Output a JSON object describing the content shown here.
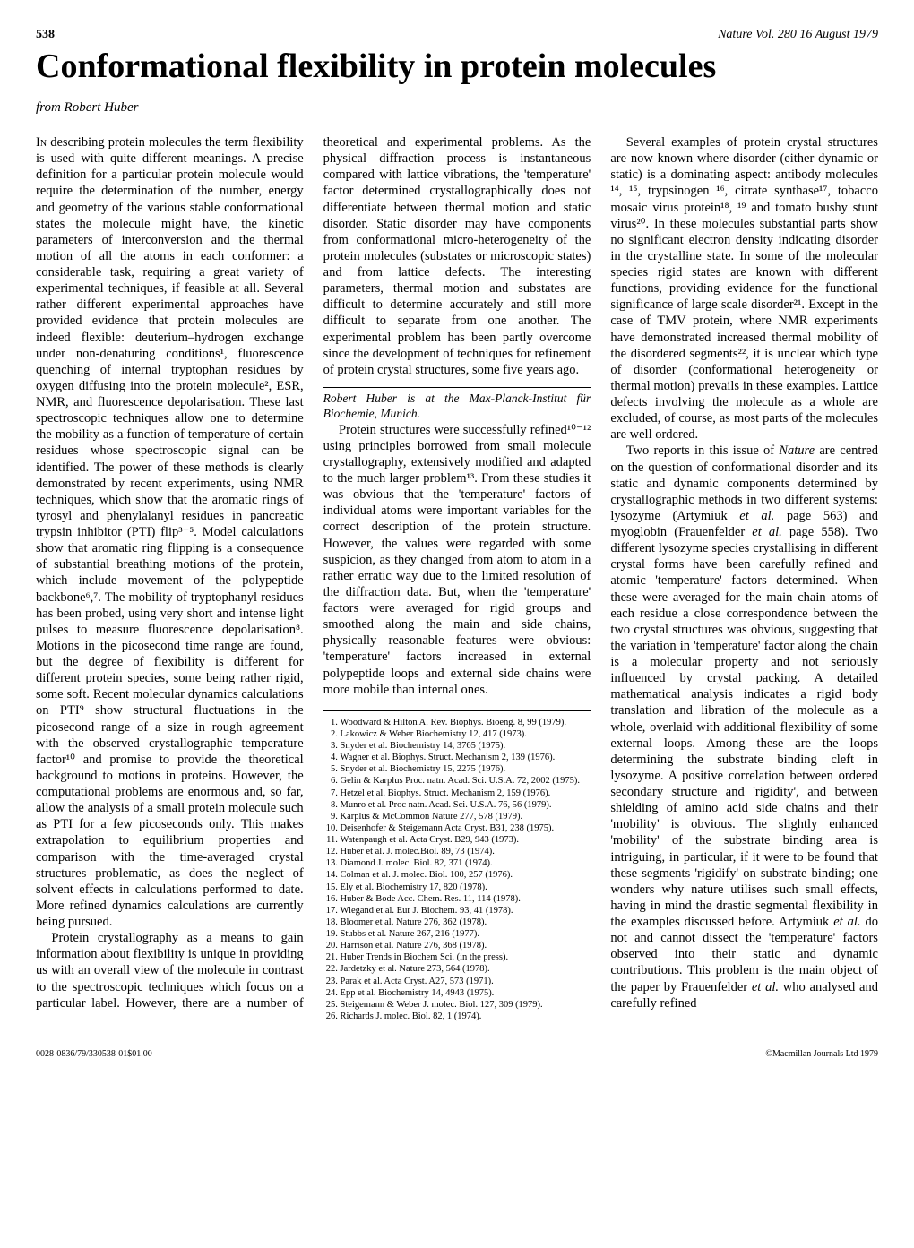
{
  "header": {
    "page_number": "538",
    "journal_line": "Nature Vol. 280   16 August 1979"
  },
  "title": "Conformational flexibility in protein molecules",
  "byline": "from Robert Huber",
  "paragraphs": {
    "p1_lead": "In",
    "p1": " describing protein molecules the term flexibility is used with quite different meanings. A precise definition for a particular protein molecule would require the determination of the number, energy and geometry of the various stable conformational states the molecule might have, the kinetic parameters of interconversion and the thermal motion of all the atoms in each conformer: a considerable task, requiring a great variety of experimental techniques, if feasible at all. Several rather different experimental approaches have provided evidence that protein molecules are indeed flexible: deuterium–hydrogen exchange under non-denaturing conditions¹, fluorescence quenching of internal tryptophan residues by oxygen diffusing into the protein molecule², ESR, NMR, and fluorescence depolarisation. These last spectroscopic techniques allow one to determine the mobility as a function of temperature of certain residues whose spectroscopic signal can be identified. The power of these methods is clearly demonstrated by recent experiments, using NMR techniques, which show that the aromatic rings of tyrosyl and phenylalanyl residues in pancreatic trypsin inhibitor (PTI) flip³⁻⁵. Model calculations show that aromatic ring flipping is a consequence of substantial breathing motions of the protein, which include movement of the polypeptide backbone⁶,⁷. The mobility of tryptophanyl residues has been probed, using very short and intense light pulses to measure fluorescence depolarisation⁸. Motions in the picosecond time range are found, but the degree of flexibility is different for different protein species, some being rather rigid, some soft. Recent molecular dynamics calculations on PTI⁹ show structural fluctuations in the picosecond range of a size in rough agreement with the observed crystallographic temperature factor¹⁰ and promise to provide the theoretical background to motions in proteins. However, the computational problems are enormous and, so far, allow the analysis of a small protein molecule such as PTI for a few picoseconds only. This makes extrapolation to equilibrium properties and comparison with the time-averaged crystal structures problematic, as does the neglect of solvent effects in calculations performed to date. More refined dynamics calculations are currently being pursued.",
    "p2": "Protein crystallography as a means to gain information about flexibility is unique in providing us with an overall view of the molecule in contrast to the spectroscopic techniques which focus on a particular label. However, there are a number of theoretical and experimental problems. As the physical diffraction process is instantaneous compared with lattice vibrations, the 'temperature' factor determined crystallographically does not differentiate between thermal motion and static disorder. Static disorder may have components from conformational micro-heterogeneity of the protein molecules (substates or microscopic states) and from lattice defects. The interesting parameters, thermal motion and substates are difficult to determine accurately and still more difficult to separate from one another. The experimental problem has been partly overcome since the development of techniques for refinement of protein crystal structures, some five years ago.",
    "p3": "Protein structures were successfully refined¹⁰⁻¹² using principles borrowed from small molecule crystallography, extensively modified and adapted to the much larger problem¹³. From these studies it was obvious that the 'temperature' factors of individual atoms were important variables for the correct description of the protein structure. However, the values were regarded with some suspicion, as they changed from atom to atom in a rather erratic way due to the limited resolution of the diffraction data. But, when the 'temperature' factors were averaged for rigid groups and smoothed along the main and side chains, physically reasonable features were obvious: 'temperature' factors increased in external polypeptide loops and external side chains were more mobile than internal ones.",
    "p4": "Several examples of protein crystal structures are now known where disorder (either dynamic or static) is a dominating aspect: antibody molecules ¹⁴, ¹⁵, trypsinogen ¹⁶, citrate synthase¹⁷, tobacco mosaic virus protein¹⁸, ¹⁹ and tomato bushy stunt virus²⁰. In these molecules substantial parts show no significant electron density indicating disorder in the crystalline state. In some of the molecular species rigid states are known with different functions, providing evidence for the functional significance of large scale disorder²¹. Except in the case of TMV protein, where NMR experiments have demonstrated increased thermal mobility of the disordered segments²², it is unclear which type of disorder (conformational heterogeneity or thermal motion) prevails in these examples. Lattice defects involving the molecule as a whole are excluded, of course, as most parts of the molecules are well ordered.",
    "p5a": "Two reports in this issue of ",
    "p5_nature": "Nature",
    "p5b": " are centred on the question of conformational disorder and its static and dynamic components determined by crystallographic methods in two different systems: lysozyme (Artymiuk ",
    "p5_etal1": "et al.",
    "p5c": " page 563) and myoglobin (Frauenfelder ",
    "p5_etal2": "et al.",
    "p5d": " page 558). Two different lysozyme species crystallising in different crystal forms have been carefully refined and atomic 'temperature' factors determined. When these were averaged for the main chain atoms of each residue a close correspondence between the two crystal structures was obvious, suggesting that the variation in 'temperature' factor along the chain is a molecular property and not seriously influenced by crystal packing. A detailed mathematical analysis indicates a rigid body translation and libration of the molecule as a whole, overlaid with additional flexibility of some external loops. Among these are the loops determining the substrate binding cleft in lysozyme. A positive correlation between ordered secondary structure and 'rigidity', and between shielding of amino acid side chains and their 'mobility' is obvious. The slightly enhanced 'mobility' of the substrate binding area is intriguing, in particular, if it were to be found that these segments 'rigidify' on substrate binding; one wonders why nature utilises such small effects, having in mind the drastic segmental flexibility in the examples discussed before. Artymiuk ",
    "p5_etal3": "et al.",
    "p5e": " do not and cannot dissect the 'temperature' factors observed into their static and dynamic contributions. This problem is the main object of the paper by Frauenfelder ",
    "p5_etal4": "et al.",
    "p5f": " who analysed and carefully refined"
  },
  "affiliation": "Robert Huber is at the Max-Planck-Institut für Biochemie, Munich.",
  "references": [
    "Woodward & Hilton A. Rev. Biophys. Bioeng. 8, 99 (1979).",
    "Lakowicz & Weber Biochemistry 12, 417 (1973).",
    "Snyder et al. Biochemistry 14, 3765 (1975).",
    "Wagner et al. Biophys. Struct. Mechanism 2, 139 (1976).",
    "Snyder et al. Biochemistry 15, 2275 (1976).",
    "Gelin & Karplus Proc. natn. Acad. Sci. U.S.A. 72, 2002 (1975).",
    "Hetzel et al. Biophys. Struct. Mechanism 2, 159 (1976).",
    "Munro et al. Proc natn. Acad. Sci. U.S.A. 76, 56 (1979).",
    "Karplus & McCommon Nature 277, 578 (1979).",
    "Deisenhofer & Steigemann Acta Cryst. B31, 238 (1975).",
    "Watenpaugh et al. Acta Cryst. B29, 943 (1973).",
    "Huber et al. J. molec.Biol. 89, 73 (1974).",
    "Diamond J. molec. Biol. 82, 371 (1974).",
    "Colman et al. J. molec. Biol. 100, 257 (1976).",
    "Ely et al. Biochemistry 17, 820 (1978).",
    "Huber & Bode Acc. Chem. Res. 11, 114 (1978).",
    "Wiegand et al. Eur J. Biochem. 93, 41 (1978).",
    "Bloomer et al. Nature 276, 362 (1978).",
    "Stubbs et al. Nature 267, 216 (1977).",
    "Harrison et al. Nature 276, 368 (1978).",
    "Huber Trends in Biochem Sci. (in the press).",
    "Jardetzky et al. Nature 273, 564 (1978).",
    "Parak et al. Acta Cryst. A27, 573 (1971).",
    "Epp et al. Biochemistry 14, 4943 (1975).",
    "Steigemann & Weber J. molec. Biol. 127, 309 (1979).",
    "Richards J. molec. Biol. 82, 1 (1974)."
  ],
  "footer": {
    "left": "0028-0836/79/330538-01$01.00",
    "right": "©Macmillan Journals Ltd 1979"
  }
}
